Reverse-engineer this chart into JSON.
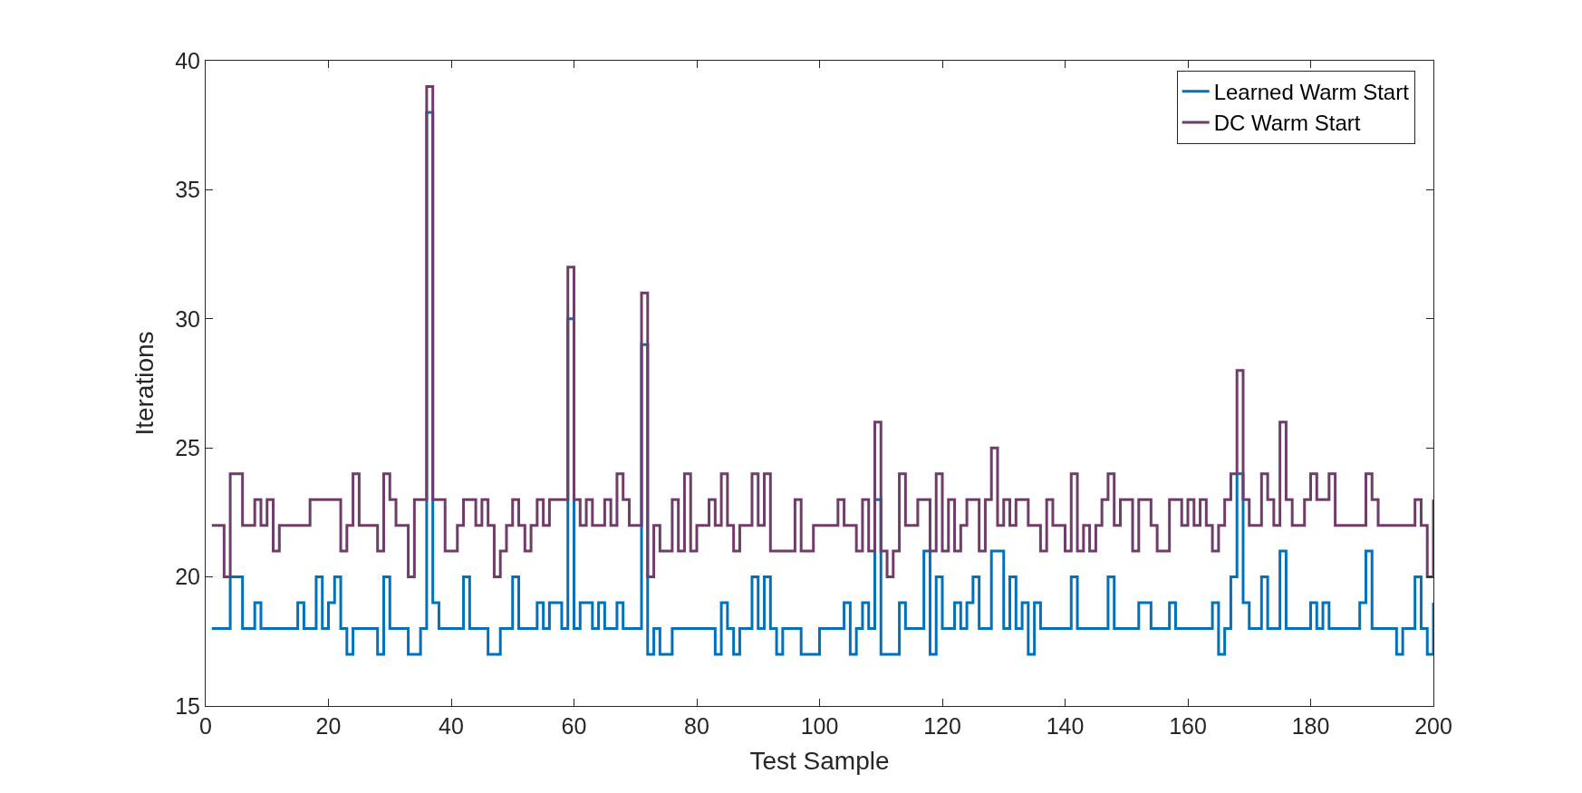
{
  "chart_data": {
    "type": "step",
    "xlabel": "Test Sample",
    "ylabel": "Iterations",
    "xlim": [
      0,
      200
    ],
    "xticks": [
      0,
      20,
      40,
      60,
      80,
      100,
      120,
      140,
      160,
      180,
      200
    ],
    "ylim": [
      15,
      40
    ],
    "yticks": [
      15,
      20,
      25,
      30,
      35,
      40
    ],
    "legend": "top right",
    "series": [
      {
        "name": "Learned Warm Start",
        "color": "#0072bd",
        "x": [
          1,
          4,
          6,
          8,
          9,
          15,
          16,
          18,
          19,
          20,
          21,
          22,
          23,
          24,
          28,
          29,
          30,
          33,
          35,
          36,
          37,
          38,
          42,
          43,
          46,
          48,
          50,
          51,
          54,
          55,
          56,
          58,
          59,
          60,
          61,
          63,
          64,
          65,
          67,
          68,
          71,
          72,
          73,
          74,
          76,
          83,
          84,
          85,
          86,
          87,
          89,
          90,
          91,
          92,
          93,
          94,
          97,
          100,
          104,
          105,
          106,
          107,
          108,
          109,
          110,
          113,
          114,
          117,
          118,
          119,
          120,
          122,
          123,
          124,
          125,
          126,
          128,
          130,
          131,
          132,
          133,
          134,
          135,
          136,
          141,
          142,
          147,
          148,
          152,
          154,
          157,
          158,
          164,
          165,
          166,
          167,
          168,
          169,
          170,
          172,
          173,
          175,
          176,
          180,
          181,
          182,
          183,
          188,
          189,
          190,
          194,
          195,
          197,
          198,
          199,
          200
        ],
        "values": [
          18,
          20,
          18,
          19,
          18,
          19,
          18,
          20,
          18,
          19,
          20,
          18,
          17,
          18,
          17,
          20,
          18,
          17,
          18,
          38,
          19,
          18,
          20,
          18,
          17,
          18,
          20,
          18,
          19,
          18,
          19,
          18,
          30,
          18,
          19,
          18,
          19,
          18,
          19,
          18,
          29,
          17,
          18,
          17,
          18,
          17,
          19,
          18,
          17,
          18,
          20,
          18,
          20,
          18,
          17,
          18,
          17,
          18,
          19,
          17,
          18,
          19,
          18,
          23,
          17,
          19,
          18,
          21,
          17,
          20,
          18,
          19,
          18,
          19,
          20,
          18,
          21,
          18,
          20,
          18,
          19,
          17,
          19,
          18,
          20,
          18,
          20,
          18,
          19,
          18,
          19,
          18,
          19,
          17,
          18,
          20,
          24,
          19,
          18,
          20,
          18,
          21,
          18,
          19,
          18,
          19,
          18,
          19,
          21,
          18,
          17,
          18,
          20,
          18,
          17,
          19
        ]
      },
      {
        "name": "DC Warm Start",
        "color": "#703c6a",
        "x": [
          1,
          3,
          4,
          6,
          8,
          9,
          10,
          11,
          12,
          17,
          22,
          23,
          24,
          25,
          28,
          29,
          30,
          31,
          33,
          34,
          36,
          37,
          39,
          41,
          42,
          44,
          45,
          46,
          47,
          48,
          49,
          50,
          51,
          52,
          53,
          54,
          55,
          56,
          59,
          60,
          61,
          62,
          63,
          65,
          66,
          67,
          68,
          69,
          71,
          72,
          73,
          74,
          76,
          77,
          78,
          79,
          80,
          82,
          83,
          84,
          85,
          86,
          87,
          89,
          90,
          91,
          92,
          96,
          97,
          99,
          103,
          104,
          106,
          107,
          108,
          109,
          110,
          111,
          112,
          113,
          114,
          116,
          118,
          119,
          120,
          121,
          122,
          123,
          124,
          126,
          127,
          128,
          129,
          130,
          131,
          132,
          134,
          136,
          137,
          138,
          140,
          141,
          142,
          143,
          144,
          145,
          146,
          147,
          148,
          149,
          151,
          152,
          154,
          155,
          157,
          159,
          160,
          161,
          162,
          163,
          164,
          165,
          166,
          167,
          168,
          169,
          170,
          172,
          173,
          174,
          175,
          176,
          177,
          179,
          180,
          181,
          183,
          184,
          189,
          190,
          191,
          197,
          198,
          199,
          200
        ],
        "values": [
          22,
          20,
          24,
          22,
          23,
          22,
          23,
          21,
          22,
          23,
          21,
          22,
          24,
          22,
          21,
          24,
          23,
          22,
          20,
          23,
          39,
          23,
          21,
          22,
          23,
          22,
          23,
          22,
          20,
          21,
          22,
          23,
          22,
          21,
          22,
          23,
          22,
          23,
          32,
          23,
          22,
          23,
          22,
          23,
          22,
          24,
          23,
          22,
          31,
          20,
          22,
          21,
          23,
          21,
          24,
          21,
          22,
          23,
          22,
          24,
          22,
          21,
          22,
          24,
          22,
          24,
          21,
          23,
          21,
          22,
          23,
          22,
          21,
          23,
          21,
          26,
          21,
          20,
          21,
          24,
          22,
          23,
          21,
          24,
          21,
          23,
          21,
          22,
          23,
          21,
          23,
          25,
          22,
          23,
          22,
          23,
          22,
          21,
          23,
          22,
          21,
          24,
          21,
          22,
          21,
          22,
          23,
          24,
          22,
          23,
          21,
          23,
          22,
          21,
          23,
          22,
          23,
          22,
          23,
          22,
          21,
          22,
          23,
          24,
          28,
          23,
          22,
          24,
          23,
          22,
          26,
          23,
          22,
          23,
          24,
          23,
          24,
          22,
          24,
          23,
          22,
          23,
          22,
          20,
          23
        ]
      }
    ]
  }
}
